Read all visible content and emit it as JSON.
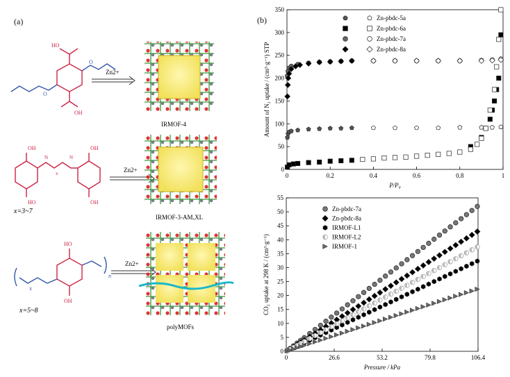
{
  "figure": {
    "panel_a_label": "(a)",
    "panel_b_label": "(b)",
    "rows": [
      {
        "reagent": "Zn2+",
        "mof_name": "IRMOF-4",
        "ligand_note": ""
      },
      {
        "reagent": "Zn2+",
        "mof_name": "IRMOF-3-AMₓXL",
        "ligand_note": "x=3~7"
      },
      {
        "reagent": "Zn2+",
        "mof_name": "polyMOFs",
        "ligand_note": "x=5~8"
      }
    ],
    "ligand_atoms": {
      "oh": "OH",
      "ho": "HO",
      "o": "O",
      "h": "H",
      "n": "N",
      "x": "x",
      "n_sub": "n"
    }
  },
  "chart_data": [
    {
      "type": "scatter",
      "xlabel": "P/P₀",
      "ylabel": "Amount of N₂ uptake / (cm³·g⁻¹) STP",
      "xlim": [
        0,
        1.0
      ],
      "ylim": [
        0,
        350
      ],
      "xticks": [
        0,
        0.2,
        0.4,
        0.6,
        0.8,
        1.0
      ],
      "yticks": [
        0,
        50,
        100,
        150,
        200,
        250,
        300,
        350
      ],
      "grid": false,
      "legend_position": "top-center",
      "legend": [
        {
          "name": "Zn-pbdc-5a",
          "marker": "pentagon",
          "fill": "#555555"
        },
        {
          "name": "Zn-pbdc-5a",
          "marker": "pentagon",
          "fill": "none"
        },
        {
          "name": "Zn-pbdc-6a",
          "marker": "square",
          "fill": "#000000"
        },
        {
          "name": "Zn-pbdc-6a",
          "marker": "square",
          "fill": "none"
        },
        {
          "name": "Zn-pbdc-7a",
          "marker": "circle",
          "fill": "#666666"
        },
        {
          "name": "Zn-pbdc-7a",
          "marker": "circle",
          "fill": "none"
        },
        {
          "name": "Zn-pbdc-8a",
          "marker": "diamond",
          "fill": "#000000"
        },
        {
          "name": "Zn-pbdc-8a",
          "marker": "diamond",
          "fill": "none"
        }
      ],
      "series": [
        {
          "name": "Zn-pbdc-5a",
          "marker": "pentagon",
          "fill": "#555555",
          "x": [
            0.002,
            0.005,
            0.01,
            0.02,
            0.05,
            0.1,
            0.15,
            0.2,
            0.25,
            0.3
          ],
          "y": [
            70,
            78,
            82,
            84,
            86,
            88,
            89,
            90,
            90,
            91
          ]
        },
        {
          "name": "Zn-pbdc-5a",
          "marker": "pentagon",
          "fill": "none",
          "x": [
            0.4,
            0.5,
            0.6,
            0.7,
            0.8,
            0.9,
            0.95,
            0.99
          ],
          "y": [
            91,
            91,
            91,
            91,
            92,
            92,
            92,
            93
          ]
        },
        {
          "name": "Zn-pbdc-6a",
          "marker": "square",
          "fill": "#000000",
          "x": [
            0.002,
            0.01,
            0.03,
            0.05,
            0.1,
            0.15,
            0.2,
            0.25,
            0.3,
            0.85,
            0.9,
            0.92,
            0.94,
            0.95,
            0.96,
            0.97,
            0.98,
            0.99
          ],
          "y": [
            5,
            10,
            12,
            13,
            15,
            16,
            18,
            19,
            20,
            50,
            70,
            90,
            110,
            130,
            150,
            175,
            200,
            295
          ]
        },
        {
          "name": "Zn-pbdc-6a",
          "marker": "square",
          "fill": "none",
          "x": [
            0.35,
            0.4,
            0.45,
            0.5,
            0.55,
            0.6,
            0.65,
            0.7,
            0.75,
            0.8,
            0.85,
            0.88,
            0.9,
            0.92,
            0.94,
            0.96,
            0.97,
            0.98,
            0.99
          ],
          "y": [
            22,
            23,
            25,
            26,
            27,
            29,
            31,
            33,
            35,
            38,
            44,
            55,
            68,
            90,
            130,
            175,
            225,
            285,
            350
          ]
        },
        {
          "name": "Zn-pbdc-7a",
          "marker": "circle",
          "fill": "#666666",
          "x": [
            0.002,
            0.005,
            0.01,
            0.02,
            0.05,
            0.1,
            0.15,
            0.2,
            0.25,
            0.3
          ],
          "y": [
            205,
            215,
            222,
            226,
            230,
            233,
            235,
            236,
            237,
            238
          ]
        },
        {
          "name": "Zn-pbdc-7a",
          "marker": "circle",
          "fill": "none",
          "x": [
            0.4,
            0.5,
            0.6,
            0.7,
            0.8,
            0.9,
            0.95,
            0.99
          ],
          "y": [
            238,
            238,
            238,
            238,
            238,
            239,
            240,
            242
          ]
        },
        {
          "name": "Zn-pbdc-8a",
          "marker": "diamond",
          "fill": "#000000",
          "x": [
            0.002,
            0.004,
            0.006,
            0.01,
            0.02,
            0.04,
            0.06,
            0.1,
            0.15,
            0.2,
            0.25,
            0.3
          ],
          "y": [
            160,
            185,
            200,
            210,
            220,
            226,
            229,
            232,
            235,
            236,
            237,
            238
          ]
        },
        {
          "name": "Zn-pbdc-8a",
          "marker": "diamond",
          "fill": "none",
          "x": [
            0.4,
            0.5,
            0.6,
            0.7,
            0.8,
            0.9,
            0.95,
            0.99
          ],
          "y": [
            238,
            238,
            238,
            238,
            238,
            238,
            239,
            240
          ]
        }
      ]
    },
    {
      "type": "scatter",
      "xlabel": "Pressure / kPa",
      "ylabel": "CO₂ uptake at 298 K / (cm³·g⁻¹)",
      "xlim": [
        0,
        106.4
      ],
      "ylim": [
        0,
        55
      ],
      "xticks": [
        0,
        26.6,
        53.2,
        79.8,
        106.4
      ],
      "yticks": [
        0,
        5,
        10,
        15,
        20,
        25,
        30,
        35,
        40,
        45,
        50,
        55
      ],
      "grid": false,
      "legend_position": "top-left",
      "series": [
        {
          "name": "Zn-pbdc-7a",
          "marker": "circle",
          "fill": "#777777",
          "slope": 0.49
        },
        {
          "name": "Zn-pbdc-8a",
          "marker": "diamond",
          "fill": "#000000",
          "slope": 0.405
        },
        {
          "name": "IRMOF-L1",
          "marker": "hexagon",
          "fill": "#000000",
          "slope": 0.305
        },
        {
          "name": "IRMOF-L2",
          "marker": "halfcircle",
          "fill": "#bbbbbb",
          "slope": 0.353
        },
        {
          "name": "IRMOF-1",
          "marker": "triangle-right",
          "fill": "#666666",
          "slope": 0.21
        }
      ],
      "x": [
        0.5,
        2,
        4,
        6,
        8,
        10,
        13,
        16,
        19,
        22,
        25,
        28,
        31,
        34,
        37,
        40,
        43,
        46,
        49,
        52,
        55,
        58,
        61,
        64,
        67,
        70,
        73,
        76,
        79,
        82,
        85,
        88,
        91,
        94,
        97,
        100,
        103,
        106
      ]
    }
  ]
}
